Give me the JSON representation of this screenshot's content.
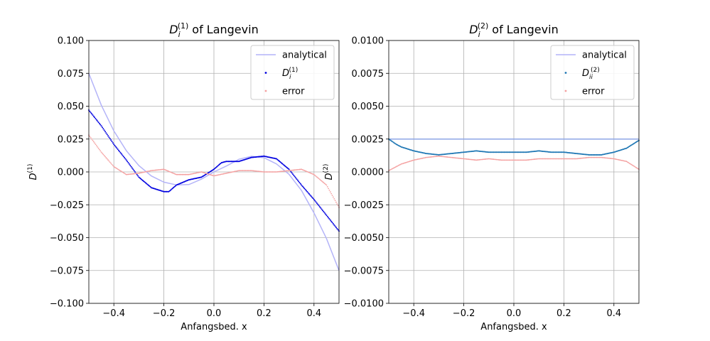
{
  "chart_data": [
    {
      "type": "scatter",
      "title": "of Langevin",
      "title_math": {
        "base": "D",
        "sub": "i",
        "sup": "(1)"
      },
      "xlabel": "Anfangsbed. x",
      "ylabel": {
        "base": "D",
        "sup": "(1)"
      },
      "xlim": [
        -0.5,
        0.5
      ],
      "ylim": [
        -0.1,
        0.1
      ],
      "xticks": [
        -0.4,
        -0.2,
        0.0,
        0.2,
        0.4
      ],
      "xtick_labels": [
        "−0.4",
        "−0.2",
        "0.0",
        "0.2",
        "0.4"
      ],
      "yticks": [
        -0.1,
        -0.075,
        -0.05,
        -0.025,
        0.0,
        0.025,
        0.05,
        0.075,
        0.1
      ],
      "ytick_labels": [
        "−0.100",
        "−0.075",
        "−0.050",
        "−0.025",
        "0.000",
        "0.025",
        "0.050",
        "0.075",
        "0.100"
      ],
      "grid": true,
      "legend_position": "top-right",
      "legend": [
        {
          "label": "analytical",
          "kind": "line",
          "color": "#b4b4f8"
        },
        {
          "label": "D",
          "label_sub": "i",
          "label_sup": "(1)",
          "kind": "dot",
          "color": "#0000e0"
        },
        {
          "label": "error",
          "kind": "dot",
          "color": "#f4a0a0"
        }
      ],
      "series": [
        {
          "name": "analytical",
          "kind": "line",
          "color": "#b4b4f8",
          "x": [
            -0.5,
            -0.45,
            -0.4,
            -0.35,
            -0.3,
            -0.25,
            -0.2,
            -0.15,
            -0.1,
            -0.05,
            0.0,
            0.05,
            0.1,
            0.15,
            0.2,
            0.25,
            0.3,
            0.35,
            0.4,
            0.45,
            0.5
          ],
          "y": [
            0.075,
            0.0507,
            0.0312,
            0.0161,
            0.0048,
            -0.0031,
            -0.0078,
            -0.0099,
            -0.0096,
            -0.0055,
            0.0,
            0.0045,
            0.0096,
            0.0119,
            0.0108,
            0.0061,
            -0.0018,
            -0.0141,
            -0.0312,
            -0.0507,
            -0.075
          ]
        },
        {
          "name": "D_i^(1)",
          "kind": "dot",
          "color": "#0000e0",
          "x": [
            -0.5,
            -0.45,
            -0.4,
            -0.35,
            -0.3,
            -0.25,
            -0.2,
            -0.18,
            -0.15,
            -0.1,
            -0.05,
            0.0,
            0.03,
            0.05,
            0.1,
            0.15,
            0.2,
            0.25,
            0.3,
            0.35,
            0.4,
            0.45,
            0.5
          ],
          "y": [
            0.047,
            0.035,
            0.021,
            0.009,
            -0.004,
            -0.012,
            -0.015,
            -0.015,
            -0.01,
            -0.006,
            -0.004,
            0.002,
            0.007,
            0.008,
            0.008,
            0.011,
            0.012,
            0.01,
            0.002,
            -0.01,
            -0.021,
            -0.033,
            -0.045
          ]
        },
        {
          "name": "error",
          "kind": "dot",
          "color": "#f4a0a0",
          "x": [
            -0.5,
            -0.45,
            -0.4,
            -0.35,
            -0.3,
            -0.25,
            -0.2,
            -0.15,
            -0.1,
            -0.05,
            0.0,
            0.05,
            0.1,
            0.15,
            0.2,
            0.25,
            0.3,
            0.35,
            0.4,
            0.45,
            0.5
          ],
          "y": [
            0.028,
            0.015,
            0.004,
            -0.002,
            -0.001,
            0.001,
            0.002,
            -0.002,
            -0.002,
            0.0,
            -0.003,
            -0.001,
            0.001,
            0.001,
            0.0,
            0.0,
            0.001,
            0.002,
            -0.002,
            -0.01,
            -0.027
          ]
        }
      ]
    },
    {
      "type": "scatter",
      "title": "of Langevin",
      "title_math": {
        "base": "D",
        "sub": "i",
        "sup": "(2)"
      },
      "xlabel": "Anfangsbed. x",
      "ylabel": {
        "base": "D",
        "sup": "(2)"
      },
      "xlim": [
        -0.5,
        0.5
      ],
      "ylim": [
        -0.01,
        0.01
      ],
      "xticks": [
        -0.4,
        -0.2,
        0.0,
        0.2,
        0.4
      ],
      "xtick_labels": [
        "−0.4",
        "−0.2",
        "0.0",
        "0.2",
        "0.4"
      ],
      "yticks": [
        -0.01,
        -0.0075,
        -0.005,
        -0.0025,
        0.0,
        0.0025,
        0.005,
        0.0075,
        0.01
      ],
      "ytick_labels": [
        "−0.0100",
        "−0.0075",
        "−0.0050",
        "−0.0025",
        "0.0000",
        "0.0025",
        "0.0050",
        "0.0075",
        "0.0100"
      ],
      "grid": true,
      "legend_position": "top-right",
      "legend": [
        {
          "label": "analytical",
          "kind": "line",
          "color": "#b4b4f8"
        },
        {
          "label": "D",
          "label_sub": "ii",
          "label_sup": "(2)",
          "kind": "dot",
          "color": "#1f77b4"
        },
        {
          "label": "error",
          "kind": "dot",
          "color": "#f4a0a0"
        }
      ],
      "series": [
        {
          "name": "analytical",
          "kind": "line",
          "color": "#8ea6e6",
          "x": [
            -0.5,
            0.5
          ],
          "y": [
            0.0025,
            0.0025
          ]
        },
        {
          "name": "D_ii^(2)",
          "kind": "dot",
          "color": "#1f77b4",
          "x": [
            -0.5,
            -0.47,
            -0.45,
            -0.4,
            -0.35,
            -0.3,
            -0.25,
            -0.2,
            -0.15,
            -0.1,
            -0.05,
            0.0,
            0.05,
            0.1,
            0.15,
            0.2,
            0.25,
            0.3,
            0.35,
            0.4,
            0.45,
            0.5
          ],
          "y": [
            0.0025,
            0.0021,
            0.0019,
            0.0016,
            0.0014,
            0.0013,
            0.0014,
            0.0015,
            0.0016,
            0.0015,
            0.0015,
            0.0015,
            0.0015,
            0.0016,
            0.0015,
            0.0015,
            0.0014,
            0.0013,
            0.0013,
            0.0015,
            0.0018,
            0.0024
          ]
        },
        {
          "name": "error",
          "kind": "dot",
          "color": "#f4a0a0",
          "x": [
            -0.5,
            -0.45,
            -0.4,
            -0.35,
            -0.3,
            -0.25,
            -0.2,
            -0.15,
            -0.1,
            -0.05,
            0.0,
            0.05,
            0.1,
            0.15,
            0.2,
            0.25,
            0.3,
            0.35,
            0.4,
            0.45,
            0.5
          ],
          "y": [
            0.0001,
            0.0006,
            0.0009,
            0.0011,
            0.0012,
            0.0011,
            0.001,
            0.0009,
            0.001,
            0.0009,
            0.0009,
            0.0009,
            0.001,
            0.001,
            0.001,
            0.001,
            0.0011,
            0.0011,
            0.001,
            0.0008,
            0.0002
          ]
        }
      ]
    }
  ]
}
